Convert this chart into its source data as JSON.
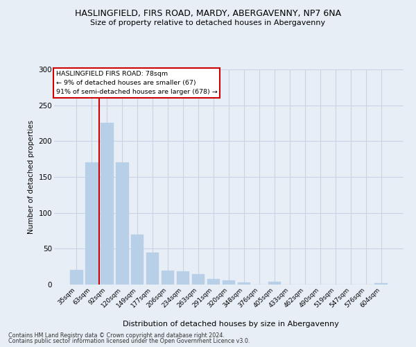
{
  "title_line1": "HASLINGFIELD, FIRS ROAD, MARDY, ABERGAVENNY, NP7 6NA",
  "title_line2": "Size of property relative to detached houses in Abergavenny",
  "xlabel": "Distribution of detached houses by size in Abergavenny",
  "ylabel": "Number of detached properties",
  "categories": [
    "35sqm",
    "63sqm",
    "92sqm",
    "120sqm",
    "149sqm",
    "177sqm",
    "206sqm",
    "234sqm",
    "263sqm",
    "291sqm",
    "320sqm",
    "348sqm",
    "376sqm",
    "405sqm",
    "433sqm",
    "462sqm",
    "490sqm",
    "519sqm",
    "547sqm",
    "576sqm",
    "604sqm"
  ],
  "values": [
    20,
    170,
    225,
    170,
    70,
    45,
    19,
    18,
    15,
    8,
    6,
    3,
    0,
    4,
    0,
    0,
    0,
    0,
    0,
    0,
    2
  ],
  "bar_color": "#b8cfe8",
  "bar_edge_color": "#b8cfe8",
  "grid_color": "#c8d4e4",
  "background_color": "#e8eef6",
  "vline_color": "#cc0000",
  "vline_xindex": 1.5,
  "ylim": [
    0,
    300
  ],
  "yticks": [
    0,
    50,
    100,
    150,
    200,
    250,
    300
  ],
  "annotation_title": "HASLINGFIELD FIRS ROAD: 78sqm",
  "annotation_line2": "← 9% of detached houses are smaller (67)",
  "annotation_line3": "91% of semi-detached houses are larger (678) →",
  "annotation_box_color": "#ffffff",
  "annotation_edge_color": "#cc0000",
  "footnote1": "Contains HM Land Registry data © Crown copyright and database right 2024.",
  "footnote2": "Contains public sector information licensed under the Open Government Licence v3.0."
}
